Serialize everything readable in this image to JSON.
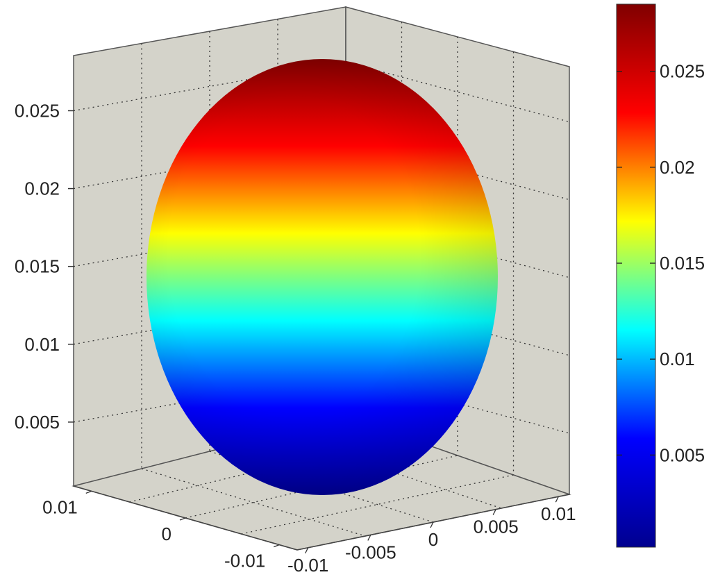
{
  "chart_data": {
    "type": "surface3d",
    "shape": "ellipsoid",
    "title": "",
    "xlabel": "",
    "ylabel": "",
    "zlabel": "",
    "x_range": [
      -0.01,
      0.01
    ],
    "y_range": [
      -0.01,
      0.01
    ],
    "z_range": [
      0,
      0.0285
    ],
    "z_ticks": [
      0.005,
      0.01,
      0.015,
      0.02,
      0.025
    ],
    "z_tick_labels": [
      "0.005",
      "0.01",
      "0.015",
      "0.02",
      "0.025"
    ],
    "front_axis_ticks": [
      -0.01,
      -0.005,
      0,
      0.005,
      0.01
    ],
    "front_axis_tick_labels": [
      "-0.01",
      "-0.005",
      "0",
      "0.005",
      "0.01"
    ],
    "left_axis_ticks": [
      -0.01,
      0,
      0.01
    ],
    "left_axis_tick_labels": [
      "-0.01",
      "0",
      "0.01"
    ],
    "grid": true,
    "grid_style": "dotted",
    "pane_color": "#d4d3ca",
    "colormap": "jet",
    "colormap_stops": [
      "#00008f",
      "#0000ff",
      "#00ffff",
      "#ffff00",
      "#ff0000",
      "#800000"
    ],
    "surface_z_extent": [
      0,
      0.0285
    ],
    "colorbar": {
      "placement": "right",
      "range": [
        0.0002,
        0.0285
      ],
      "ticks": [
        0.005,
        0.01,
        0.015,
        0.02,
        0.025
      ],
      "tick_labels": [
        "0.005",
        "0.01",
        "0.015",
        "0.02",
        "0.025"
      ]
    }
  }
}
